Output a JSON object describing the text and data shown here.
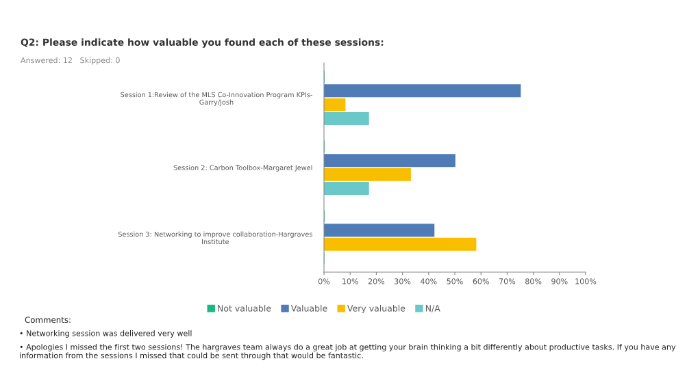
{
  "chart_data": {
    "type": "bar",
    "orientation": "horizontal",
    "title": "Q2: Please indicate how valuable you found each of these sessions:",
    "subtitle": "Answered: 12   Skipped: 0",
    "categories": [
      "Session 1:Review of the MLS Co-Innovation Program KPIs-\nGarry/Josh",
      "Session 2: Carbon Toolbox-Margaret Jewel",
      "Session 3: Networking to improve collaboration-Hargraves\nInstitute"
    ],
    "series": [
      {
        "name": "Not valuable",
        "color": "#16b97f",
        "values": [
          0,
          0,
          0
        ]
      },
      {
        "name": "Valuable",
        "color": "#4f7bb6",
        "values": [
          75,
          50,
          42
        ]
      },
      {
        "name": "Very valuable",
        "color": "#f9be00",
        "values": [
          8,
          33,
          58
        ]
      },
      {
        "name": "N/A",
        "color": "#6bc8c9",
        "values": [
          17,
          17,
          0
        ]
      }
    ],
    "xlim": [
      0,
      100
    ],
    "xticks": [
      {
        "value": 0,
        "label": "0%"
      },
      {
        "value": 10,
        "label": "10%"
      },
      {
        "value": 20,
        "label": "20%"
      },
      {
        "value": 30,
        "label": "30%"
      },
      {
        "value": 40,
        "label": "40%"
      },
      {
        "value": 50,
        "label": "50%"
      },
      {
        "value": 60,
        "label": "60%"
      },
      {
        "value": 70,
        "label": "70%"
      },
      {
        "value": 80,
        "label": "80%"
      },
      {
        "value": 90,
        "label": "90%"
      },
      {
        "value": 100,
        "label": "100%"
      }
    ],
    "grid": false,
    "legend": "bottom",
    "annotations": [
      "Comments:",
      "• Networking session was delivered very well",
      "• Apologies I missed the first two sessions! The hargraves team always do a great job at getting your brain thinking a bit differently about productive tasks. If you have any information from the sessions I missed that could be sent through that would be fantastic."
    ]
  }
}
